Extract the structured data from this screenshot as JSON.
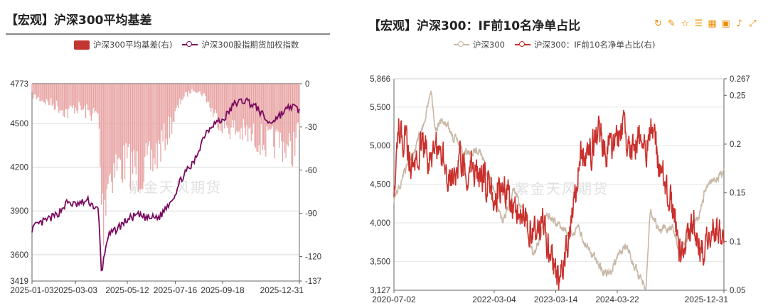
{
  "left": {
    "title": "【宏观】沪深300平均基差",
    "watermark": "紫金天风期货",
    "legend": [
      {
        "label": "沪深300平均基差(右)",
        "color": "#c23531",
        "type": "box"
      },
      {
        "label": "沪深300股指期货加权指数",
        "color": "#7a0a5e",
        "type": "line"
      }
    ]
  },
  "right": {
    "title": "【宏观】沪深300：IF前10名净单占比",
    "watermark": "紫金天风期货",
    "toolbar": [
      "refresh-icon",
      "edit-icon",
      "star-icon",
      "list-icon",
      "table-icon",
      "image-icon",
      "bell-icon",
      "expand-icon"
    ],
    "legend": [
      {
        "label": "沪深300",
        "color": "#c8b8a6",
        "type": "line"
      },
      {
        "label": "沪深300：IF前10名净单占比(右)",
        "color": "#c9302c",
        "type": "line"
      }
    ]
  },
  "chart_data": [
    {
      "type": "bar+line",
      "title": "【宏观】沪深300平均基差",
      "x_labels": [
        "2025-01-03",
        "2025-03-03",
        "2025-05-12",
        "2025-07-16",
        "2025-09-18",
        "2025-12-31"
      ],
      "x_range": [
        "2025-01-03",
        "2025-12-31"
      ],
      "y_left": {
        "min": 3419,
        "max": 4773,
        "ticks": [
          3419,
          3600,
          3900,
          4200,
          4500,
          4773
        ]
      },
      "y_right": {
        "min": -137,
        "max": 0,
        "ticks": [
          0,
          -30,
          -60,
          -90,
          -120,
          -137
        ]
      },
      "series": [
        {
          "name": "沪深300平均基差(右)",
          "axis": "right",
          "kind": "bar",
          "points": [
            [
              "2025-01-03",
              -8
            ],
            [
              "2025-01-20",
              -12
            ],
            [
              "2025-02-05",
              -15
            ],
            [
              "2025-02-20",
              -20
            ],
            [
              "2025-03-03",
              -16
            ],
            [
              "2025-03-20",
              -20
            ],
            [
              "2025-04-03",
              -22
            ],
            [
              "2025-04-07",
              -80
            ],
            [
              "2025-04-09",
              -95
            ],
            [
              "2025-04-15",
              -65
            ],
            [
              "2025-04-25",
              -58
            ],
            [
              "2025-05-12",
              -55
            ],
            [
              "2025-05-25",
              -60
            ],
            [
              "2025-06-10",
              -58
            ],
            [
              "2025-06-25",
              -45
            ],
            [
              "2025-07-16",
              -22
            ],
            [
              "2025-07-25",
              -10
            ],
            [
              "2025-08-10",
              -4
            ],
            [
              "2025-08-25",
              -8
            ],
            [
              "2025-09-05",
              -20
            ],
            [
              "2025-09-18",
              -28
            ],
            [
              "2025-10-05",
              -32
            ],
            [
              "2025-10-20",
              -35
            ],
            [
              "2025-11-05",
              -38
            ],
            [
              "2025-11-20",
              -42
            ],
            [
              "2025-12-05",
              -40
            ],
            [
              "2025-12-20",
              -48
            ],
            [
              "2025-12-31",
              -30
            ]
          ]
        },
        {
          "name": "沪深300股指期货加权指数",
          "axis": "left",
          "kind": "line",
          "points": [
            [
              "2025-01-03",
              3780
            ],
            [
              "2025-01-20",
              3830
            ],
            [
              "2025-02-05",
              3870
            ],
            [
              "2025-02-20",
              3960
            ],
            [
              "2025-03-03",
              3940
            ],
            [
              "2025-03-20",
              3970
            ],
            [
              "2025-04-03",
              3900
            ],
            [
              "2025-04-07",
              3470
            ],
            [
              "2025-04-15",
              3720
            ],
            [
              "2025-05-12",
              3840
            ],
            [
              "2025-05-25",
              3870
            ],
            [
              "2025-06-10",
              3850
            ],
            [
              "2025-06-25",
              3860
            ],
            [
              "2025-07-16",
              4020
            ],
            [
              "2025-07-25",
              4130
            ],
            [
              "2025-08-10",
              4230
            ],
            [
              "2025-08-25",
              4430
            ],
            [
              "2025-09-05",
              4500
            ],
            [
              "2025-09-18",
              4520
            ],
            [
              "2025-10-05",
              4640
            ],
            [
              "2025-10-20",
              4660
            ],
            [
              "2025-11-05",
              4600
            ],
            [
              "2025-11-20",
              4500
            ],
            [
              "2025-12-05",
              4560
            ],
            [
              "2025-12-20",
              4620
            ],
            [
              "2025-12-31",
              4590
            ]
          ]
        }
      ]
    },
    {
      "type": "line",
      "title": "【宏观】沪深300：IF前10名净单占比",
      "x_labels": [
        "2020-07-02",
        "2022-03-04",
        "2023-03-14",
        "2024-03-22",
        "2025-12-31"
      ],
      "x_range": [
        "2020-07-02",
        "2025-12-31"
      ],
      "y_left": {
        "min": 3127,
        "max": 5866,
        "ticks": [
          3127,
          3500,
          4000,
          4500,
          5000,
          5500,
          5866
        ]
      },
      "y_right": {
        "min": 0.05,
        "max": 0.267,
        "ticks": [
          0.05,
          0.1,
          0.15,
          0.2,
          0.25,
          0.267
        ]
      },
      "series": [
        {
          "name": "沪深300",
          "axis": "left",
          "points": [
            [
              "2020-07-02",
              4300
            ],
            [
              "2020-09-01",
              4650
            ],
            [
              "2020-11-01",
              4900
            ],
            [
              "2021-01-01",
              5300
            ],
            [
              "2021-02-15",
              5700
            ],
            [
              "2021-03-10",
              5200
            ],
            [
              "2021-05-01",
              5350
            ],
            [
              "2021-07-01",
              5100
            ],
            [
              "2021-09-01",
              4900
            ],
            [
              "2021-12-01",
              4950
            ],
            [
              "2022-03-04",
              4400
            ],
            [
              "2022-04-25",
              4000
            ],
            [
              "2022-07-01",
              4450
            ],
            [
              "2022-09-01",
              4100
            ],
            [
              "2022-10-31",
              3550
            ],
            [
              "2023-01-20",
              4150
            ],
            [
              "2023-03-14",
              4000
            ],
            [
              "2023-06-01",
              3850
            ],
            [
              "2023-08-01",
              3900
            ],
            [
              "2023-10-01",
              3650
            ],
            [
              "2023-12-01",
              3450
            ],
            [
              "2024-02-01",
              3300
            ],
            [
              "2024-03-22",
              3550
            ],
            [
              "2024-05-20",
              3700
            ],
            [
              "2024-07-01",
              3450
            ],
            [
              "2024-09-13",
              3150
            ],
            [
              "2024-10-08",
              4200
            ],
            [
              "2024-12-01",
              3900
            ],
            [
              "2025-03-01",
              3950
            ],
            [
              "2025-04-07",
              3600
            ],
            [
              "2025-06-01",
              3850
            ],
            [
              "2025-08-01",
              4100
            ],
            [
              "2025-09-15",
              4500
            ],
            [
              "2025-11-01",
              4600
            ],
            [
              "2025-12-31",
              4650
            ]
          ]
        },
        {
          "name": "沪深300：IF前10名净单占比(右)",
          "axis": "right",
          "points": [
            [
              "2020-07-02",
              0.16
            ],
            [
              "2020-08-01",
              0.215
            ],
            [
              "2020-09-15",
              0.2
            ],
            [
              "2020-11-01",
              0.175
            ],
            [
              "2020-12-15",
              0.205
            ],
            [
              "2021-02-01",
              0.18
            ],
            [
              "2021-04-01",
              0.2
            ],
            [
              "2021-06-01",
              0.165
            ],
            [
              "2021-08-01",
              0.185
            ],
            [
              "2021-10-01",
              0.175
            ],
            [
              "2022-01-01",
              0.165
            ],
            [
              "2022-03-04",
              0.15
            ],
            [
              "2022-05-01",
              0.155
            ],
            [
              "2022-07-01",
              0.14
            ],
            [
              "2022-09-01",
              0.125
            ],
            [
              "2022-11-01",
              0.105
            ],
            [
              "2023-01-01",
              0.12
            ],
            [
              "2023-02-01",
              0.09
            ],
            [
              "2023-03-14",
              0.065
            ],
            [
              "2023-05-01",
              0.075
            ],
            [
              "2023-07-01",
              0.14
            ],
            [
              "2023-08-15",
              0.2
            ],
            [
              "2023-10-01",
              0.19
            ],
            [
              "2023-12-01",
              0.21
            ],
            [
              "2024-01-15",
              0.195
            ],
            [
              "2024-03-22",
              0.205
            ],
            [
              "2024-05-01",
              0.215
            ],
            [
              "2024-06-15",
              0.19
            ],
            [
              "2024-08-01",
              0.21
            ],
            [
              "2024-09-15",
              0.185
            ],
            [
              "2024-10-15",
              0.225
            ],
            [
              "2024-11-15",
              0.19
            ],
            [
              "2025-01-01",
              0.165
            ],
            [
              "2025-03-01",
              0.13
            ],
            [
              "2025-04-07",
              0.09
            ],
            [
              "2025-05-15",
              0.1
            ],
            [
              "2025-07-01",
              0.12
            ],
            [
              "2025-09-01",
              0.085
            ],
            [
              "2025-10-15",
              0.115
            ],
            [
              "2025-12-31",
              0.1
            ]
          ]
        }
      ]
    }
  ]
}
